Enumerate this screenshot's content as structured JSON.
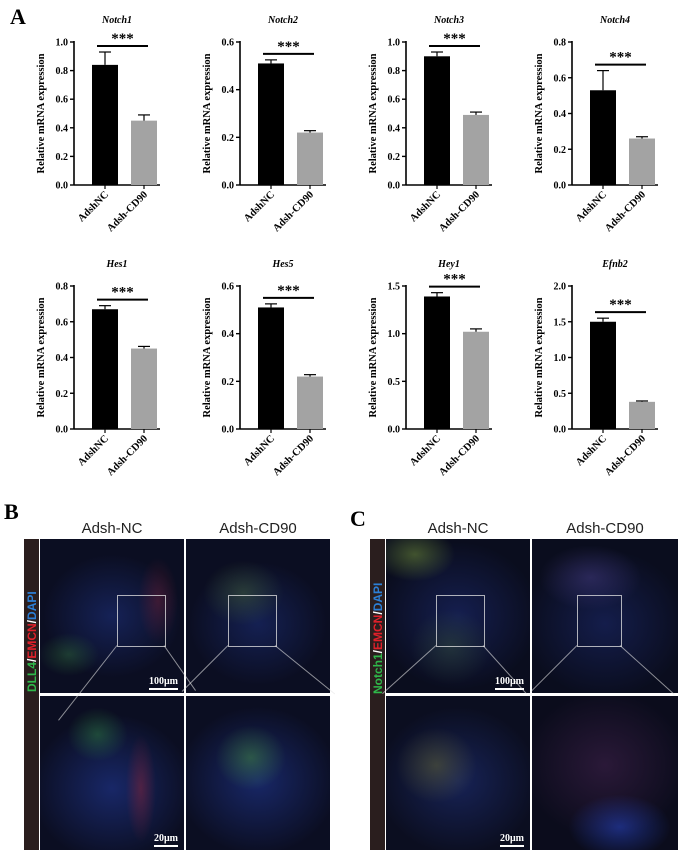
{
  "panel_a": {
    "letter": "A",
    "significance": "***",
    "ylabel": "Relative mRNA expression",
    "charts": [
      {
        "gene": "Notch1",
        "yticks": [
          "0.0",
          "0.2",
          "0.4",
          "0.6",
          "0.8",
          "1.0"
        ],
        "ymax": 1.0
      },
      {
        "gene": "Notch2",
        "yticks": [
          "0.0",
          "0.2",
          "0.4",
          "0.6"
        ],
        "ymax": 0.6
      },
      {
        "gene": "Notch3",
        "yticks": [
          "0.0",
          "0.2",
          "0.4",
          "0.6",
          "0.8",
          "1.0"
        ],
        "ymax": 1.0
      },
      {
        "gene": "Notch4",
        "yticks": [
          "0.0",
          "0.2",
          "0.4",
          "0.6",
          "0.8"
        ],
        "ymax": 0.8
      },
      {
        "gene": "Hes1",
        "yticks": [
          "0.0",
          "0.2",
          "0.4",
          "0.6",
          "0.8"
        ],
        "ymax": 0.8
      },
      {
        "gene": "Hes5",
        "yticks": [
          "0.0",
          "0.2",
          "0.4",
          "0.6"
        ],
        "ymax": 0.6
      },
      {
        "gene": "Hey1",
        "yticks": [
          "0.0",
          "0.5",
          "1.0",
          "1.5"
        ],
        "ymax": 1.5
      },
      {
        "gene": "Efnb2",
        "yticks": [
          "0.0",
          "0.5",
          "1.0",
          "1.5",
          "2.0"
        ],
        "ymax": 2.0
      }
    ]
  },
  "chart_data": [
    {
      "type": "bar",
      "title": "Notch1",
      "ylabel": "Relative mRNA expression",
      "categories": [
        "AdshNC",
        "Adsh-CD90"
      ],
      "values": [
        0.84,
        0.45
      ],
      "errors": [
        0.09,
        0.04
      ],
      "ylim": [
        0,
        1.0
      ],
      "colors": [
        "#000000",
        "#a3a3a3"
      ],
      "annotation": "***"
    },
    {
      "type": "bar",
      "title": "Notch2",
      "ylabel": "Relative mRNA expression",
      "categories": [
        "AdshNC",
        "Adsh-CD90"
      ],
      "values": [
        0.51,
        0.22
      ],
      "errors": [
        0.015,
        0.008
      ],
      "ylim": [
        0,
        0.6
      ],
      "colors": [
        "#000000",
        "#a3a3a3"
      ],
      "annotation": "***"
    },
    {
      "type": "bar",
      "title": "Notch3",
      "ylabel": "Relative mRNA expression",
      "categories": [
        "AdshNC",
        "Adsh-CD90"
      ],
      "values": [
        0.9,
        0.49
      ],
      "errors": [
        0.03,
        0.02
      ],
      "ylim": [
        0,
        1.0
      ],
      "colors": [
        "#000000",
        "#a3a3a3"
      ],
      "annotation": "***"
    },
    {
      "type": "bar",
      "title": "Notch4",
      "ylabel": "Relative mRNA expression",
      "categories": [
        "AdshNC",
        "Adsh-CD90"
      ],
      "values": [
        0.53,
        0.26
      ],
      "errors": [
        0.11,
        0.01
      ],
      "ylim": [
        0,
        0.8
      ],
      "colors": [
        "#000000",
        "#a3a3a3"
      ],
      "annotation": "***"
    },
    {
      "type": "bar",
      "title": "Hes1",
      "ylabel": "Relative mRNA expression",
      "categories": [
        "AdshNC",
        "Adsh-CD90"
      ],
      "values": [
        0.67,
        0.45
      ],
      "errors": [
        0.02,
        0.012
      ],
      "ylim": [
        0,
        0.8
      ],
      "colors": [
        "#000000",
        "#a3a3a3"
      ],
      "annotation": "***"
    },
    {
      "type": "bar",
      "title": "Hes5",
      "ylabel": "Relative mRNA expression",
      "categories": [
        "AdshNC",
        "Adsh-CD90"
      ],
      "values": [
        0.51,
        0.22
      ],
      "errors": [
        0.015,
        0.008
      ],
      "ylim": [
        0,
        0.6
      ],
      "colors": [
        "#000000",
        "#a3a3a3"
      ],
      "annotation": "***"
    },
    {
      "type": "bar",
      "title": "Hey1",
      "ylabel": "Relative mRNA expression",
      "categories": [
        "AdshNC",
        "Adsh-CD90"
      ],
      "values": [
        1.39,
        1.02
      ],
      "errors": [
        0.04,
        0.03
      ],
      "ylim": [
        0,
        1.5
      ],
      "colors": [
        "#000000",
        "#a3a3a3"
      ],
      "annotation": "***"
    },
    {
      "type": "bar",
      "title": "Efnb2",
      "ylabel": "Relative mRNA expression",
      "categories": [
        "AdshNC",
        "Adsh-CD90"
      ],
      "values": [
        1.5,
        0.38
      ],
      "errors": [
        0.05,
        0.012
      ],
      "ylim": [
        0,
        2.0
      ],
      "colors": [
        "#000000",
        "#a3a3a3"
      ],
      "annotation": "***"
    }
  ],
  "panel_b": {
    "letter": "B",
    "col_headers": [
      "Adsh-NC",
      "Adsh-CD90"
    ],
    "stain_label": {
      "part1": "DLL4",
      "sep1": "/",
      "part2": "EMCN",
      "sep2": "/",
      "part3": "DAPI"
    },
    "stain_colors": {
      "part1": "#2fb84a",
      "part2": "#e0202a",
      "part3": "#2c7fd6",
      "sep": "#ffffff"
    },
    "scale_top": "100μm",
    "scale_bottom": "20μm"
  },
  "panel_c": {
    "letter": "C",
    "col_headers": [
      "Adsh-NC",
      "Adsh-CD90"
    ],
    "stain_label": {
      "part1": "Notch1",
      "sep1": "/",
      "part2": "EMCN",
      "sep2": "/",
      "part3": "DAPI"
    },
    "stain_colors": {
      "part1": "#2fb84a",
      "part2": "#e0202a",
      "part3": "#2c7fd6",
      "sep": "#ffffff"
    },
    "scale_top": "100μm",
    "scale_bottom": "20μm"
  }
}
